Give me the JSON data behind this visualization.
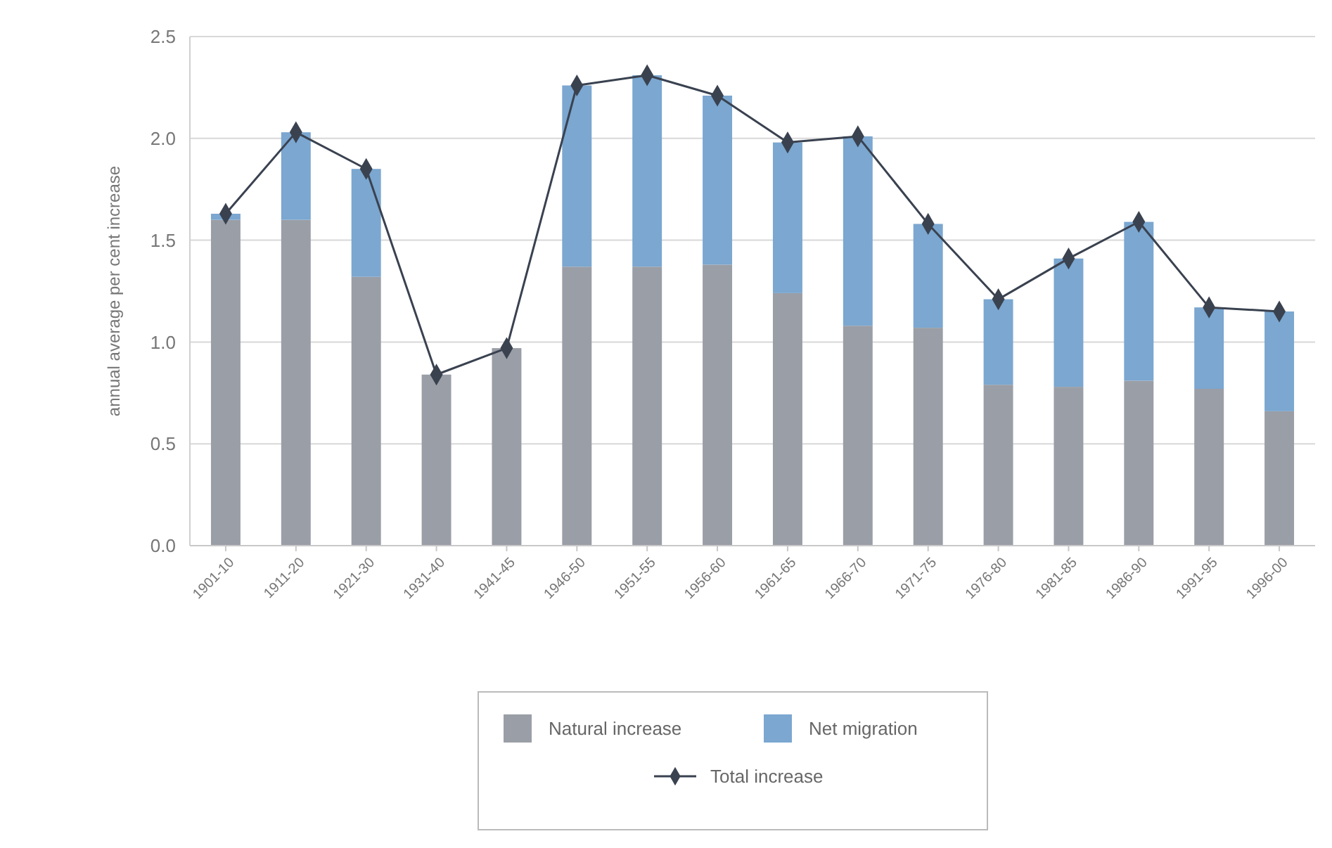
{
  "chart_data": {
    "type": "bar",
    "ylabel": "annual average per cent increase",
    "categories": [
      "1901-10",
      "1911-20",
      "1921-30",
      "1931-40",
      "1941-45",
      "1946-50",
      "1951-55",
      "1956-60",
      "1961-65",
      "1966-70",
      "1971-75",
      "1976-80",
      "1981-85",
      "1986-90",
      "1991-95",
      "1996-00"
    ],
    "stacked": true,
    "ylim": [
      0,
      2.5
    ],
    "yticks": [
      {
        "value": 0,
        "label": "0.0"
      },
      {
        "value": 0.5,
        "label": "0.5"
      },
      {
        "value": 1,
        "label": "1.0"
      },
      {
        "value": 1.5,
        "label": "1.5"
      },
      {
        "value": 2,
        "label": "2.0"
      },
      {
        "value": 2.5,
        "label": "2.5"
      }
    ],
    "grid": "y",
    "legend": "bottom",
    "marker": "diamond",
    "line_style": "solid",
    "series": [
      {
        "name": "Natural increase",
        "color": "#9a9ea6",
        "values": [
          1.6,
          1.6,
          1.32,
          0.84,
          0.97,
          1.37,
          1.37,
          1.38,
          1.24,
          1.08,
          1.07,
          0.79,
          0.78,
          0.81,
          0.77,
          0.66
        ]
      },
      {
        "name": "Net migration",
        "color": "#7ba7d0",
        "values": [
          0.03,
          0.43,
          0.53,
          0,
          0,
          0.89,
          0.94,
          0.83,
          0.74,
          0.93,
          0.51,
          0.42,
          0.63,
          0.78,
          0.4,
          0.49
        ]
      },
      {
        "name": "Total increase",
        "type": "line",
        "color": "#3a4250",
        "values": [
          1.63,
          2.03,
          1.85,
          0.84,
          0.97,
          2.26,
          2.31,
          2.21,
          1.98,
          2.01,
          1.58,
          1.21,
          1.41,
          1.59,
          1.17,
          1.15
        ]
      }
    ]
  }
}
